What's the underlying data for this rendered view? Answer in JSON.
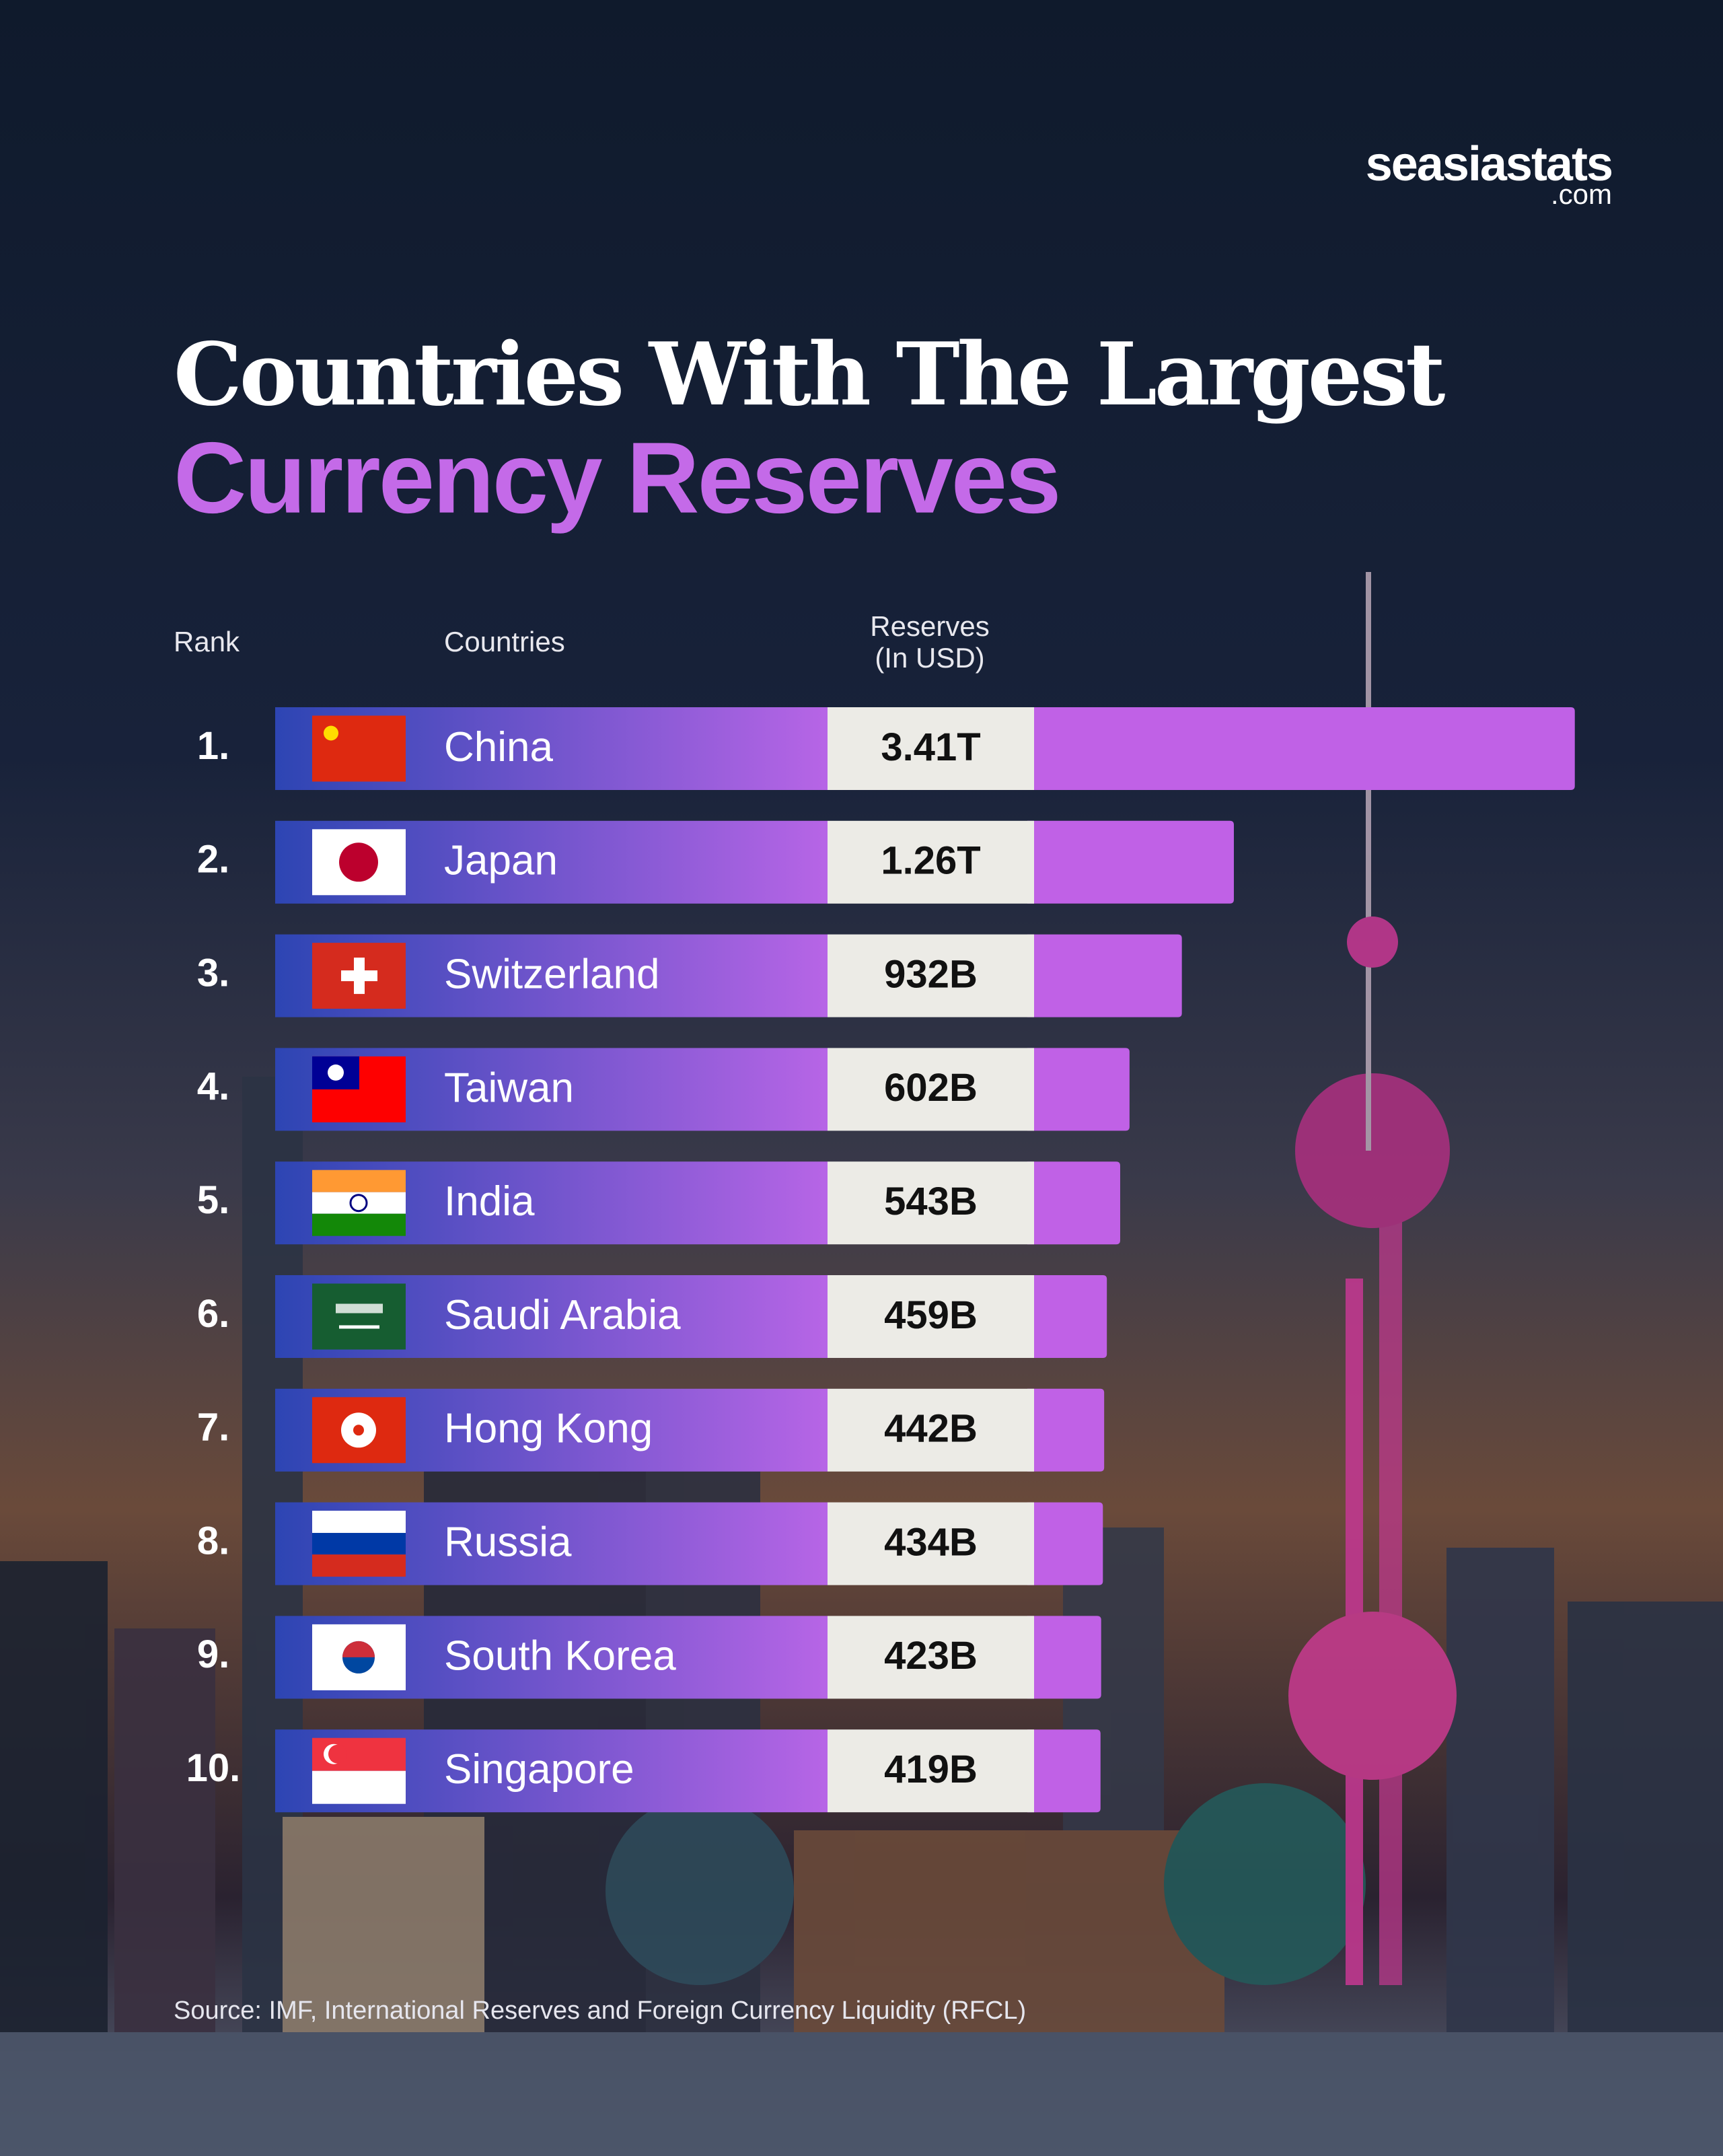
{
  "brand": "seasiastats",
  "brand_suffix": ".com",
  "chart_data": {
    "type": "bar",
    "title": "Countries With The Largest",
    "subtitle": "Currency Reserves",
    "rank_header": "Rank",
    "category_header": "Countries",
    "value_header": [
      "Reserves",
      "(In USD)"
    ],
    "ranks": [
      "1.",
      "2.",
      "3.",
      "4.",
      "5.",
      "6.",
      "7.",
      "8.",
      "9.",
      "10."
    ],
    "categories": [
      "China",
      "Japan",
      "Switzerland",
      "Taiwan",
      "India",
      "Saudi Arabia",
      "Hong Kong",
      "Russia",
      "South Korea",
      "Singapore"
    ],
    "values": [
      3410,
      1260,
      932,
      602,
      543,
      459,
      442,
      434,
      423,
      419
    ],
    "value_labels": [
      "3.41T",
      "1.26T",
      "932B",
      "602B",
      "543B",
      "459B",
      "442B",
      "434B",
      "423B",
      "419B"
    ],
    "color": "#c061e6",
    "gradient": [
      "#2d45b3",
      "#b765e6"
    ],
    "label_box_color": "#ecebe6",
    "source": "Source: IMF, International Reserves and Foreign Currency Liquidity (RFCL)"
  }
}
